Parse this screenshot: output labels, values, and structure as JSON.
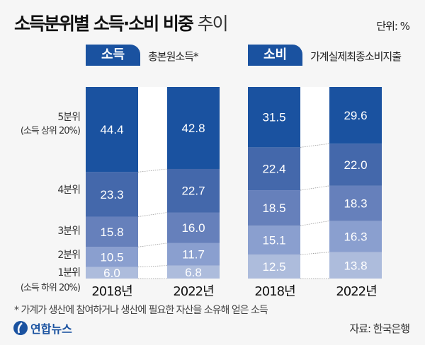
{
  "title": {
    "bold": "소득분위별 소득·소비 비중",
    "light": "추이"
  },
  "unit": "단위: %",
  "panels": [
    {
      "tab": "소득",
      "subtitle": "총본원소득*"
    },
    {
      "tab": "소비",
      "subtitle": "가계실제최종소비지출"
    }
  ],
  "quintile_labels": {
    "q5": "5분위",
    "q5_note": "(소득 상위 20%)",
    "q4": "4분위",
    "q3": "3분위",
    "q2": "2분위",
    "q1": "1분위",
    "q1_note": "(소득 하위 20%)"
  },
  "colors": {
    "q5": "#1a52a0",
    "q4": "#4468ab",
    "q3": "#6680bb",
    "q2": "#8a9fcf",
    "q1": "#adbcdc"
  },
  "chart_data": {
    "type": "bar",
    "stacked": true,
    "categories": [
      "2018년",
      "2022년",
      "2018년",
      "2022년"
    ],
    "groups": [
      "소득",
      "소득",
      "소비",
      "소비"
    ],
    "series": [
      {
        "name": "1분위",
        "values": [
          6.0,
          6.8,
          12.5,
          13.8
        ]
      },
      {
        "name": "2분위",
        "values": [
          10.5,
          11.7,
          15.1,
          16.3
        ]
      },
      {
        "name": "3분위",
        "values": [
          15.8,
          16.0,
          18.5,
          18.3
        ]
      },
      {
        "name": "4분위",
        "values": [
          23.3,
          22.7,
          22.4,
          22.0
        ]
      },
      {
        "name": "5분위",
        "values": [
          44.4,
          42.8,
          31.5,
          29.6
        ]
      }
    ],
    "ylim": [
      0,
      100
    ]
  },
  "footnote": "* 가계가 생산에 참여하거나 생산에 필요한 자산을 소유해 얻은 소득",
  "source": "자료: 한국은행",
  "logo": "연합뉴스"
}
